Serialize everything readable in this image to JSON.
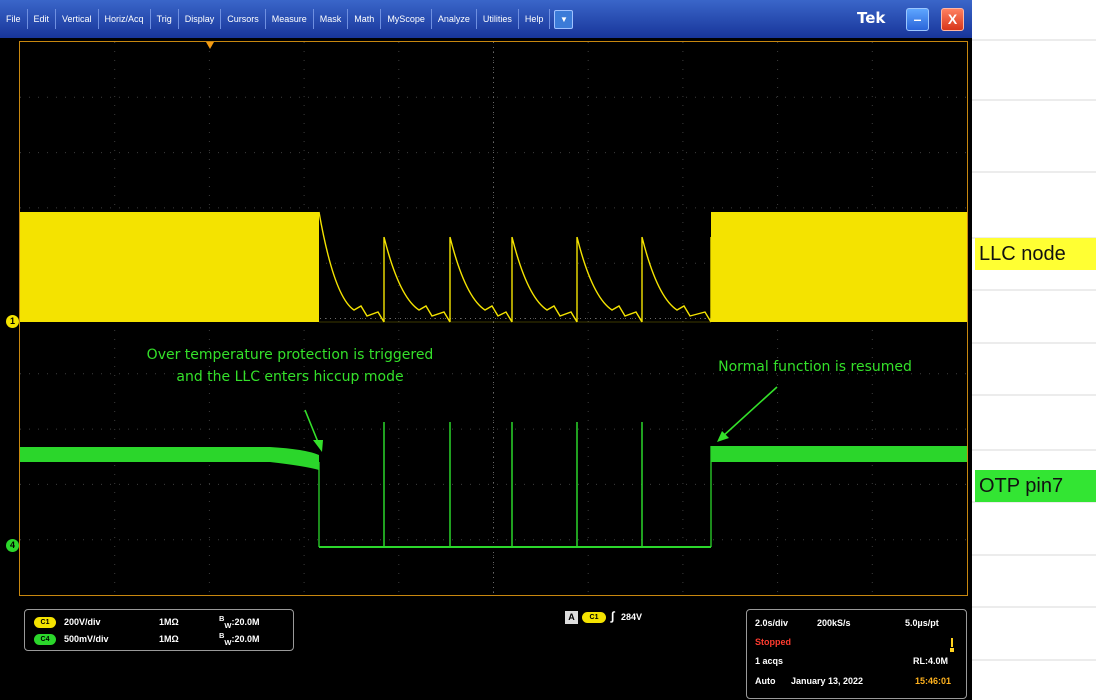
{
  "menubar": {
    "items": [
      "File",
      "Edit",
      "Vertical",
      "Horiz/Acq",
      "Trig",
      "Display",
      "Cursors",
      "Measure",
      "Mask",
      "Math",
      "MyScope",
      "Analyze",
      "Utilities",
      "Help"
    ],
    "dropdown_icon": "chevron-down-icon",
    "logo": "Tek",
    "minimize_icon": "minimize-icon",
    "close_icon": "close-icon",
    "bar_color": "#2a4fb8"
  },
  "channels": {
    "ch1_marker": "1",
    "ch4_marker": "4",
    "ch1_color": "#f4e300",
    "ch4_color": "#2bd62b"
  },
  "trace_labels": {
    "llc": "LLC node",
    "otp": "OTP pin7"
  },
  "annotations": {
    "otp_triggered_line1": "Over temperature protection is triggered",
    "otp_triggered_line2": "and the LLC enters hiccup mode",
    "resumed": "Normal function is resumed",
    "color": "#34e02a"
  },
  "channel_settings": [
    {
      "badge": "C1",
      "scale": "200V/div",
      "impedance": "1MΩ",
      "bw_prefix": "B",
      "bw_sub": "W",
      "bw_value": ":20.0M"
    },
    {
      "badge": "C4",
      "scale": "500mV/div",
      "impedance": "1MΩ",
      "bw_prefix": "B",
      "bw_sub": "W",
      "bw_value": ":20.0M"
    }
  ],
  "trigger": {
    "label": "A",
    "source": "C1",
    "slope": "∫",
    "level": "284V"
  },
  "acquisition": {
    "timebase": "2.0s/div",
    "sample_rate": "200kS/s",
    "resolution": "5.0µs/pt",
    "state": "Stopped",
    "acqs": "1 acqs",
    "record_length": "RL:4.0M",
    "mode": "Auto",
    "date": "January 13, 2022",
    "time": "15:46:01"
  }
}
